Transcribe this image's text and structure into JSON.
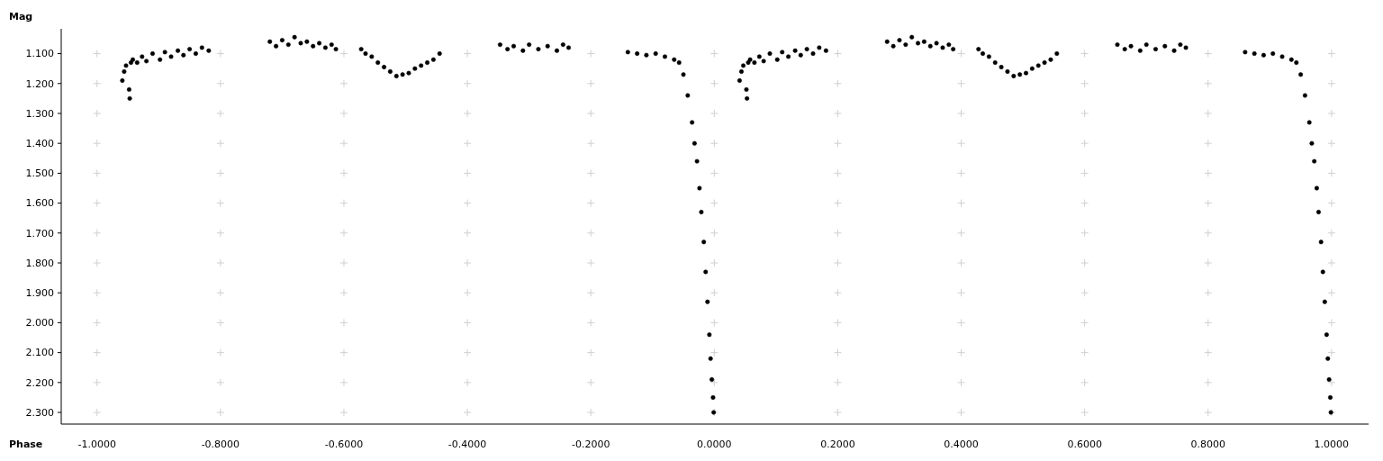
{
  "chart_data": {
    "type": "scatter",
    "xlabel": "Phase",
    "ylabel": "Mag",
    "xlim": [
      -1.058,
      1.06
    ],
    "ylim": [
      2.339,
      1.017
    ],
    "xticks": [
      {
        "value": -1,
        "label": "-1.0000"
      },
      {
        "value": -0.8,
        "label": "-0.8000"
      },
      {
        "value": -0.6,
        "label": "-0.6000"
      },
      {
        "value": -0.4,
        "label": "-0.4000"
      },
      {
        "value": -0.2,
        "label": "-0.2000"
      },
      {
        "value": 0,
        "label": "0.0000"
      },
      {
        "value": 0.2,
        "label": "0.2000"
      },
      {
        "value": 0.4,
        "label": "0.4000"
      },
      {
        "value": 0.6,
        "label": "0.6000"
      },
      {
        "value": 0.8,
        "label": "0.8000"
      },
      {
        "value": 1,
        "label": "1.0000"
      }
    ],
    "yticks": [
      {
        "value": 1.1,
        "label": "1.100"
      },
      {
        "value": 1.2,
        "label": "1.200"
      },
      {
        "value": 1.3,
        "label": "1.300"
      },
      {
        "value": 1.4,
        "label": "1.400"
      },
      {
        "value": 1.5,
        "label": "1.500"
      },
      {
        "value": 1.6,
        "label": "1.600"
      },
      {
        "value": 1.7,
        "label": "1.700"
      },
      {
        "value": 1.8,
        "label": "1.800"
      },
      {
        "value": 1.9,
        "label": "1.900"
      },
      {
        "value": 2.0,
        "label": "2.000"
      },
      {
        "value": 2.1,
        "label": "2.100"
      },
      {
        "value": 2.2,
        "label": "2.200"
      },
      {
        "value": 2.3,
        "label": "2.300"
      }
    ],
    "grid": true,
    "marker": "circle",
    "series": [
      {
        "color": "#000000",
        "x": [
          -0.959,
          -0.956,
          -0.953,
          -0.948,
          -0.947,
          -0.945,
          -0.942,
          -0.935,
          -0.927,
          -0.92,
          -0.91,
          -0.898,
          -0.89,
          -0.88,
          -0.869,
          -0.86,
          -0.85,
          -0.84,
          -0.83,
          -0.819,
          -0.72,
          -0.71,
          -0.7,
          -0.69,
          -0.68,
          -0.67,
          -0.66,
          -0.65,
          -0.64,
          -0.63,
          -0.62,
          -0.613,
          -0.572,
          -0.565,
          -0.555,
          -0.545,
          -0.535,
          -0.525,
          -0.515,
          -0.505,
          -0.495,
          -0.485,
          -0.475,
          -0.465,
          -0.455,
          -0.445,
          -0.347,
          -0.335,
          -0.325,
          -0.31,
          -0.3,
          -0.285,
          -0.27,
          -0.255,
          -0.245,
          -0.236,
          -0.14,
          -0.125,
          -0.11,
          -0.095,
          -0.08,
          -0.065,
          -0.057,
          -0.05,
          -0.043,
          -0.036,
          -0.032,
          -0.028,
          -0.024,
          -0.021,
          -0.017,
          -0.014,
          -0.011,
          -0.008,
          -0.006,
          -0.004,
          -0.002,
          -0.001,
          0.041,
          0.044,
          0.047,
          0.052,
          0.053,
          0.055,
          0.058,
          0.065,
          0.073,
          0.08,
          0.09,
          0.102,
          0.11,
          0.12,
          0.131,
          0.14,
          0.15,
          0.16,
          0.17,
          0.181,
          0.28,
          0.29,
          0.3,
          0.31,
          0.32,
          0.33,
          0.34,
          0.35,
          0.36,
          0.37,
          0.38,
          0.387,
          0.428,
          0.435,
          0.445,
          0.455,
          0.465,
          0.475,
          0.485,
          0.495,
          0.505,
          0.515,
          0.525,
          0.535,
          0.545,
          0.555,
          0.653,
          0.665,
          0.675,
          0.69,
          0.7,
          0.715,
          0.73,
          0.745,
          0.755,
          0.764,
          0.86,
          0.875,
          0.89,
          0.905,
          0.92,
          0.935,
          0.943,
          0.95,
          0.957,
          0.964,
          0.968,
          0.972,
          0.976,
          0.979,
          0.983,
          0.986,
          0.989,
          0.992,
          0.994,
          0.996,
          0.998,
          0.999
        ],
        "values": [
          1.19,
          1.16,
          1.14,
          1.22,
          1.25,
          1.13,
          1.12,
          1.13,
          1.11,
          1.125,
          1.1,
          1.12,
          1.095,
          1.11,
          1.09,
          1.105,
          1.085,
          1.1,
          1.08,
          1.09,
          1.06,
          1.075,
          1.055,
          1.07,
          1.045,
          1.065,
          1.06,
          1.075,
          1.065,
          1.08,
          1.07,
          1.085,
          1.085,
          1.1,
          1.11,
          1.13,
          1.145,
          1.16,
          1.175,
          1.17,
          1.165,
          1.15,
          1.14,
          1.13,
          1.12,
          1.1,
          1.07,
          1.085,
          1.075,
          1.09,
          1.07,
          1.085,
          1.075,
          1.09,
          1.07,
          1.08,
          1.095,
          1.1,
          1.105,
          1.1,
          1.11,
          1.12,
          1.13,
          1.17,
          1.24,
          1.33,
          1.4,
          1.46,
          1.55,
          1.63,
          1.73,
          1.83,
          1.93,
          2.04,
          2.12,
          2.19,
          2.25,
          2.3,
          1.19,
          1.16,
          1.14,
          1.22,
          1.25,
          1.13,
          1.12,
          1.13,
          1.11,
          1.125,
          1.1,
          1.12,
          1.095,
          1.11,
          1.09,
          1.105,
          1.085,
          1.1,
          1.08,
          1.09,
          1.06,
          1.075,
          1.055,
          1.07,
          1.045,
          1.065,
          1.06,
          1.075,
          1.065,
          1.08,
          1.07,
          1.085,
          1.085,
          1.1,
          1.11,
          1.13,
          1.145,
          1.16,
          1.175,
          1.17,
          1.165,
          1.15,
          1.14,
          1.13,
          1.12,
          1.1,
          1.07,
          1.085,
          1.075,
          1.09,
          1.07,
          1.085,
          1.075,
          1.09,
          1.07,
          1.08,
          1.095,
          1.1,
          1.105,
          1.1,
          1.11,
          1.12,
          1.13,
          1.17,
          1.24,
          1.33,
          1.4,
          1.46,
          1.55,
          1.63,
          1.73,
          1.83,
          1.93,
          2.04,
          2.12,
          2.19,
          2.25,
          2.3
        ]
      }
    ]
  }
}
